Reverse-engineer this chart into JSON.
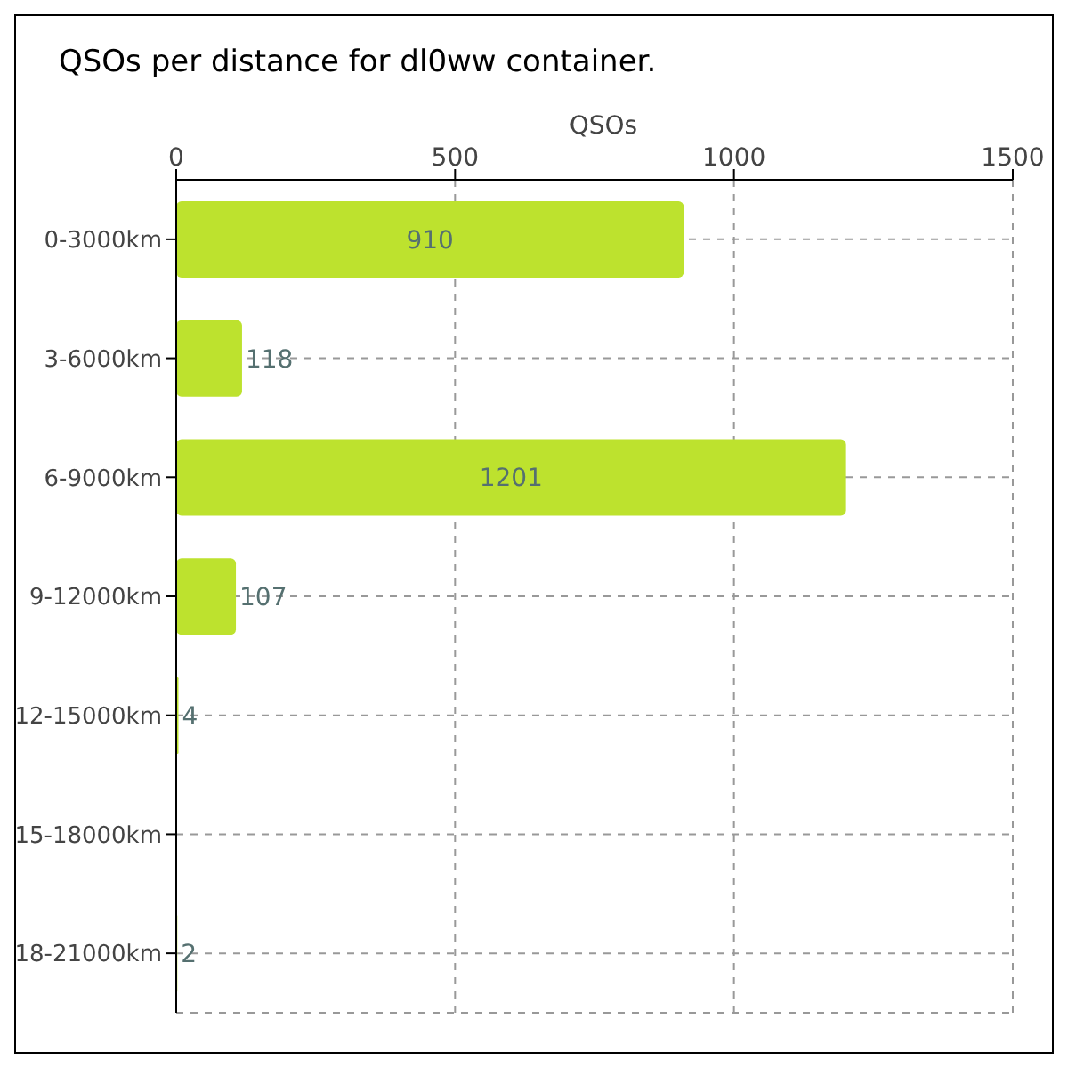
{
  "chart_data": {
    "type": "bar",
    "orientation": "horizontal",
    "title": "QSOs per distance for dl0ww container.",
    "xlabel": "QSOs",
    "categories": [
      "0-3000km",
      "3-6000km",
      "6-9000km",
      "9-12000km",
      "12-15000km",
      "15-18000km",
      "18-21000km"
    ],
    "values": [
      910,
      118,
      1201,
      107,
      4,
      0,
      2
    ],
    "value_labels": [
      "910",
      "118",
      "1201",
      "107",
      "4",
      null,
      "2"
    ],
    "color": "#bde22e",
    "xlim": [
      0,
      1500
    ],
    "xticks": [
      0,
      500,
      1000,
      1500
    ],
    "grid": true
  }
}
